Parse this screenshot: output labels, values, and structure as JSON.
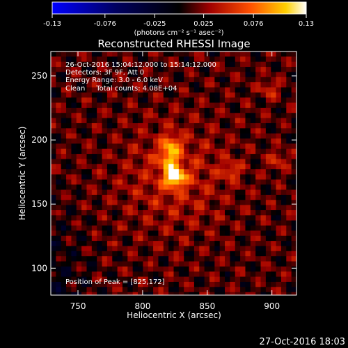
{
  "chart_data": {
    "type": "heatmap",
    "title": "Reconstructed RHESSI Image",
    "xlabel": "Heliocentric X (arcsec)",
    "ylabel": "Heliocentric Y (arcsec)",
    "xlim": [
      729,
      919
    ],
    "ylim": [
      79,
      269
    ],
    "x_ticks": [
      750,
      800,
      850,
      900
    ],
    "y_ticks": [
      100,
      150,
      200,
      250
    ],
    "colorbar": {
      "range": [
        -0.13,
        0.13
      ],
      "tick_values": [
        -0.13,
        -0.076,
        -0.025,
        0.025,
        0.076,
        0.13
      ],
      "tick_labels": [
        "-0.13",
        "-0.076",
        "-0.025",
        "0.025",
        "0.076",
        "0.13"
      ],
      "units_label": "(photons cm⁻² s⁻¹ asec⁻²)"
    },
    "annotations": [
      "26-Oct-2016 15:04:12.000 to 15:14:12.000",
      "Detectors: 3F 9F, Att 0",
      "Energy Range: 3.0 - 6.0 keV",
      "Clean     Total counts: 4.08E+04"
    ],
    "peak_label": "Position of Peak = [825,172]",
    "peak_position": [
      825,
      172
    ],
    "secondary_sources": [
      [
        822,
        197
      ],
      [
        820,
        186
      ],
      [
        868,
        177
      ],
      [
        905,
        185
      ],
      [
        898,
        240
      ]
    ],
    "grid": false
  },
  "footer": {
    "timestamp": "27-Oct-2016 18:03"
  },
  "colors": {
    "background": "#000000",
    "foreground": "#ffffff",
    "colormap": [
      "#0000ff",
      "#000060",
      "#000000",
      "#a00000",
      "#ff5000",
      "#ffd000",
      "#ffffff"
    ]
  }
}
